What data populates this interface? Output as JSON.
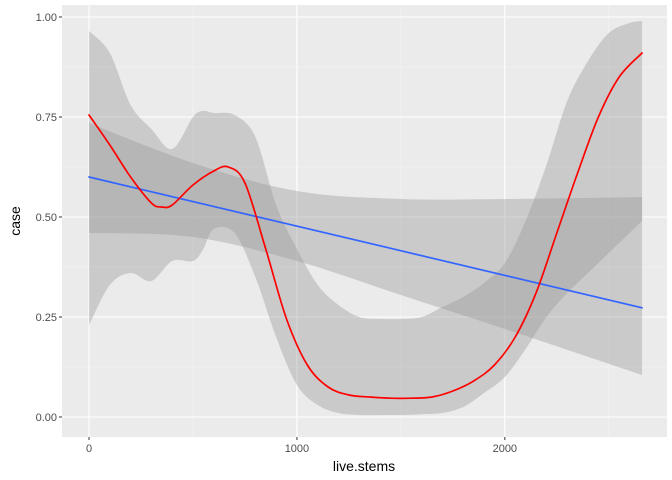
{
  "chart_data": {
    "type": "line",
    "title": "",
    "xlabel": "live.stems",
    "ylabel": "case",
    "xlim": [
      -130,
      2780
    ],
    "ylim": [
      -0.05,
      1.03
    ],
    "x_ticks": [
      0,
      1000,
      2000
    ],
    "x_tick_labels": [
      "0",
      "1000",
      "2000"
    ],
    "y_ticks": [
      0,
      0.25,
      0.5,
      0.75,
      1
    ],
    "y_tick_labels": [
      "0.00",
      "0.25",
      "0.50",
      "0.75",
      "1.00"
    ],
    "grid": true,
    "legend": "none",
    "colors": {
      "panel_background": "#ebebeb",
      "grid_major": "#ffffff",
      "grid_minor": "#f5f5f5",
      "ribbon": "#999999",
      "ribbon_opacity": 0.4,
      "linear_fit": "#3366ff",
      "smooth_fit": "#ff0000"
    },
    "series": [
      {
        "color": "#3366ff",
        "x": [
          0,
          2660
        ],
        "values": [
          0.6,
          0.273
        ],
        "band_x": [
          0,
          500,
          1000,
          1500,
          2000,
          2660
        ],
        "band_lower": [
          0.46,
          0.45,
          0.39,
          0.305,
          0.22,
          0.105
        ],
        "band_upper": [
          0.735,
          0.635,
          0.565,
          0.545,
          0.545,
          0.55
        ]
      },
      {
        "color": "#ff0000",
        "x": [
          0,
          100,
          200,
          300,
          350,
          400,
          500,
          600,
          670,
          750,
          850,
          950,
          1050,
          1150,
          1250,
          1350,
          1450,
          1550,
          1650,
          1750,
          1850,
          1950,
          2050,
          2150,
          2250,
          2350,
          2450,
          2550,
          2660
        ],
        "values": [
          0.755,
          0.68,
          0.6,
          0.535,
          0.525,
          0.53,
          0.58,
          0.615,
          0.625,
          0.585,
          0.42,
          0.245,
          0.13,
          0.075,
          0.055,
          0.05,
          0.047,
          0.047,
          0.05,
          0.065,
          0.09,
          0.13,
          0.2,
          0.31,
          0.46,
          0.61,
          0.75,
          0.85,
          0.91
        ],
        "band_x": [
          0,
          100,
          200,
          300,
          400,
          500,
          550,
          600,
          700,
          800,
          900,
          1000,
          1100,
          1200,
          1300,
          1400,
          1500,
          1600,
          1700,
          1800,
          1900,
          2000,
          2100,
          2200,
          2300,
          2400,
          2500,
          2600,
          2660
        ],
        "band_lower": [
          0.23,
          0.33,
          0.36,
          0.34,
          0.39,
          0.39,
          0.42,
          0.47,
          0.46,
          0.35,
          0.2,
          0.08,
          0.03,
          0.01,
          0.005,
          0.005,
          0.005,
          0.007,
          0.01,
          0.025,
          0.06,
          0.1,
          0.17,
          0.25,
          0.31,
          0.36,
          0.41,
          0.46,
          0.49
        ],
        "band_upper": [
          0.965,
          0.91,
          0.78,
          0.72,
          0.67,
          0.75,
          0.765,
          0.76,
          0.755,
          0.7,
          0.53,
          0.42,
          0.33,
          0.28,
          0.25,
          0.245,
          0.245,
          0.25,
          0.275,
          0.3,
          0.335,
          0.385,
          0.49,
          0.63,
          0.79,
          0.89,
          0.96,
          0.985,
          0.99
        ]
      }
    ]
  }
}
